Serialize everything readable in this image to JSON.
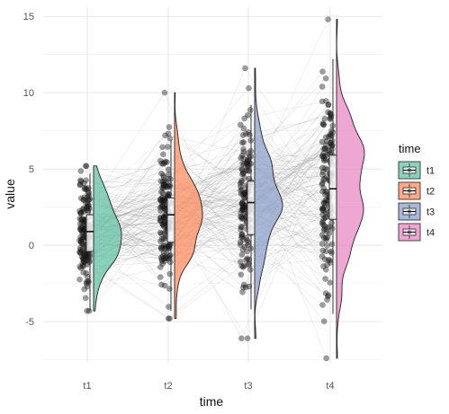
{
  "chart_data": {
    "type": "raincloud",
    "title": "",
    "xlabel": "time",
    "ylabel": "value",
    "categories": [
      "t1",
      "t2",
      "t3",
      "t4"
    ],
    "ylim": [
      -7.7,
      15.6
    ],
    "yticks": [
      -5,
      0,
      5,
      10,
      15
    ],
    "grid": true,
    "legend": {
      "title": "time",
      "position": "right",
      "entries": [
        "t1",
        "t2",
        "t3",
        "t4"
      ]
    },
    "colors": {
      "t1": "#66c2a5",
      "t2": "#fc8d62",
      "t3": "#8da0cb",
      "t4": "#e78ac3"
    },
    "series": [
      {
        "name": "t1",
        "min": -4.3,
        "q1": -0.4,
        "median": 0.9,
        "q3": 2.0,
        "max": 5.2,
        "whisker_low": -4.3,
        "whisker_high": 4.7
      },
      {
        "name": "t2",
        "min": -4.8,
        "q1": 0.2,
        "median": 2.0,
        "q3": 3.1,
        "max": 10.0,
        "whisker_low": -4.3,
        "whisker_high": 6.9
      },
      {
        "name": "t3",
        "min": -6.1,
        "q1": 0.7,
        "median": 2.8,
        "q3": 4.2,
        "max": 11.6,
        "whisker_low": -4.2,
        "whisker_high": 9.2
      },
      {
        "name": "t4",
        "min": -7.4,
        "q1": 1.7,
        "median": 3.7,
        "q3": 5.9,
        "max": 14.8,
        "whisker_low": -4.5,
        "whisker_high": 12.2
      }
    ]
  }
}
